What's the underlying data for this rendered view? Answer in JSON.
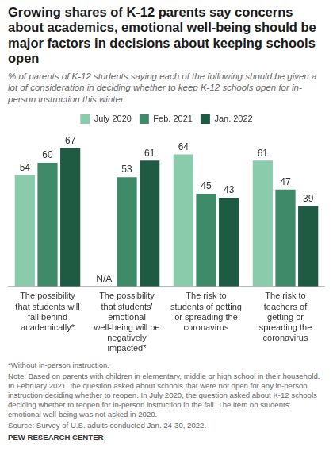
{
  "chart_data": {
    "type": "bar",
    "title": "Growing shares of K-12 parents say concerns about academics, emotional well-being should be major factors in decisions about keeping schools open",
    "subtitle": "% of parents of K-12 students saying each of the following should be given a lot of consideration in deciding whether to keep K-12 schools open for in-person instruction this winter",
    "categories": [
      "The possibility that students will fall behind academically*",
      "The possibility that students' emotional well-being will be negatively impacted*",
      "The risk to students of getting or spreading the coronavirus",
      "The risk to teachers of getting or spreading the coronavirus"
    ],
    "series": [
      {
        "name": "July 2020",
        "color": "#8acbac",
        "values": [
          54,
          null,
          64,
          61
        ],
        "value_labels": [
          "54",
          "N/A",
          "64",
          "61"
        ]
      },
      {
        "name": "Feb. 2021",
        "color": "#3f8a69",
        "values": [
          60,
          53,
          45,
          47
        ]
      },
      {
        "name": "Jan. 2022",
        "color": "#1f5b43",
        "values": [
          67,
          61,
          43,
          39
        ]
      }
    ],
    "ylim": [
      0,
      75
    ],
    "tick_labels": "x",
    "grid": false,
    "legend": "top",
    "data_labels": true,
    "annotations": [
      "*Without in-person instruction.",
      "Note: Based on parents with children in elementary, middle or high school in their household. In February 2021, the question asked about schools that were not open for any in-person instruction deciding whether to reopen. In July 2020, the question asked about K-12 schools deciding whether to reopen for in-person instruction in the fall. The item on students' emotional well-being was not asked in 2020.",
      "Source: Survey of U.S. adults conducted Jan. 24-30, 2022.",
      "PEW RESEARCH CENTER"
    ]
  }
}
